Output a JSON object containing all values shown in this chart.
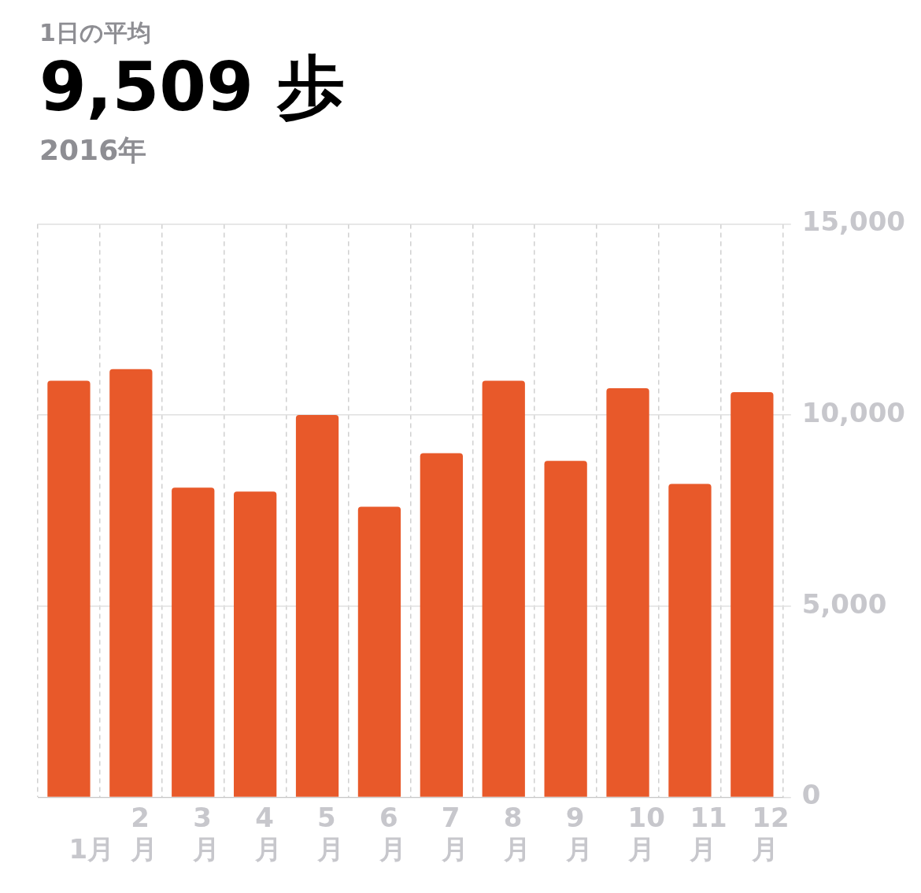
{
  "chart_data": {
    "type": "bar",
    "title": "1日の平均",
    "subtitle": "9,509 歩",
    "annotations": [
      "2016年"
    ],
    "categories": [
      "1月",
      "2月",
      "3月",
      "4月",
      "5月",
      "6月",
      "7月",
      "8月",
      "9月",
      "10月",
      "11月",
      "12月"
    ],
    "values": [
      10900,
      11200,
      8100,
      8000,
      10000,
      7600,
      9000,
      10900,
      8800,
      10700,
      8200,
      10600
    ],
    "color": "#e8592a",
    "ylim": [
      0,
      15000
    ],
    "yticks": [
      {
        "value": 0,
        "label": "0"
      },
      {
        "value": 5000,
        "label": "5,000"
      },
      {
        "value": 10000,
        "label": "10,000"
      },
      {
        "value": 15000,
        "label": "15,000"
      }
    ],
    "grid": true
  }
}
